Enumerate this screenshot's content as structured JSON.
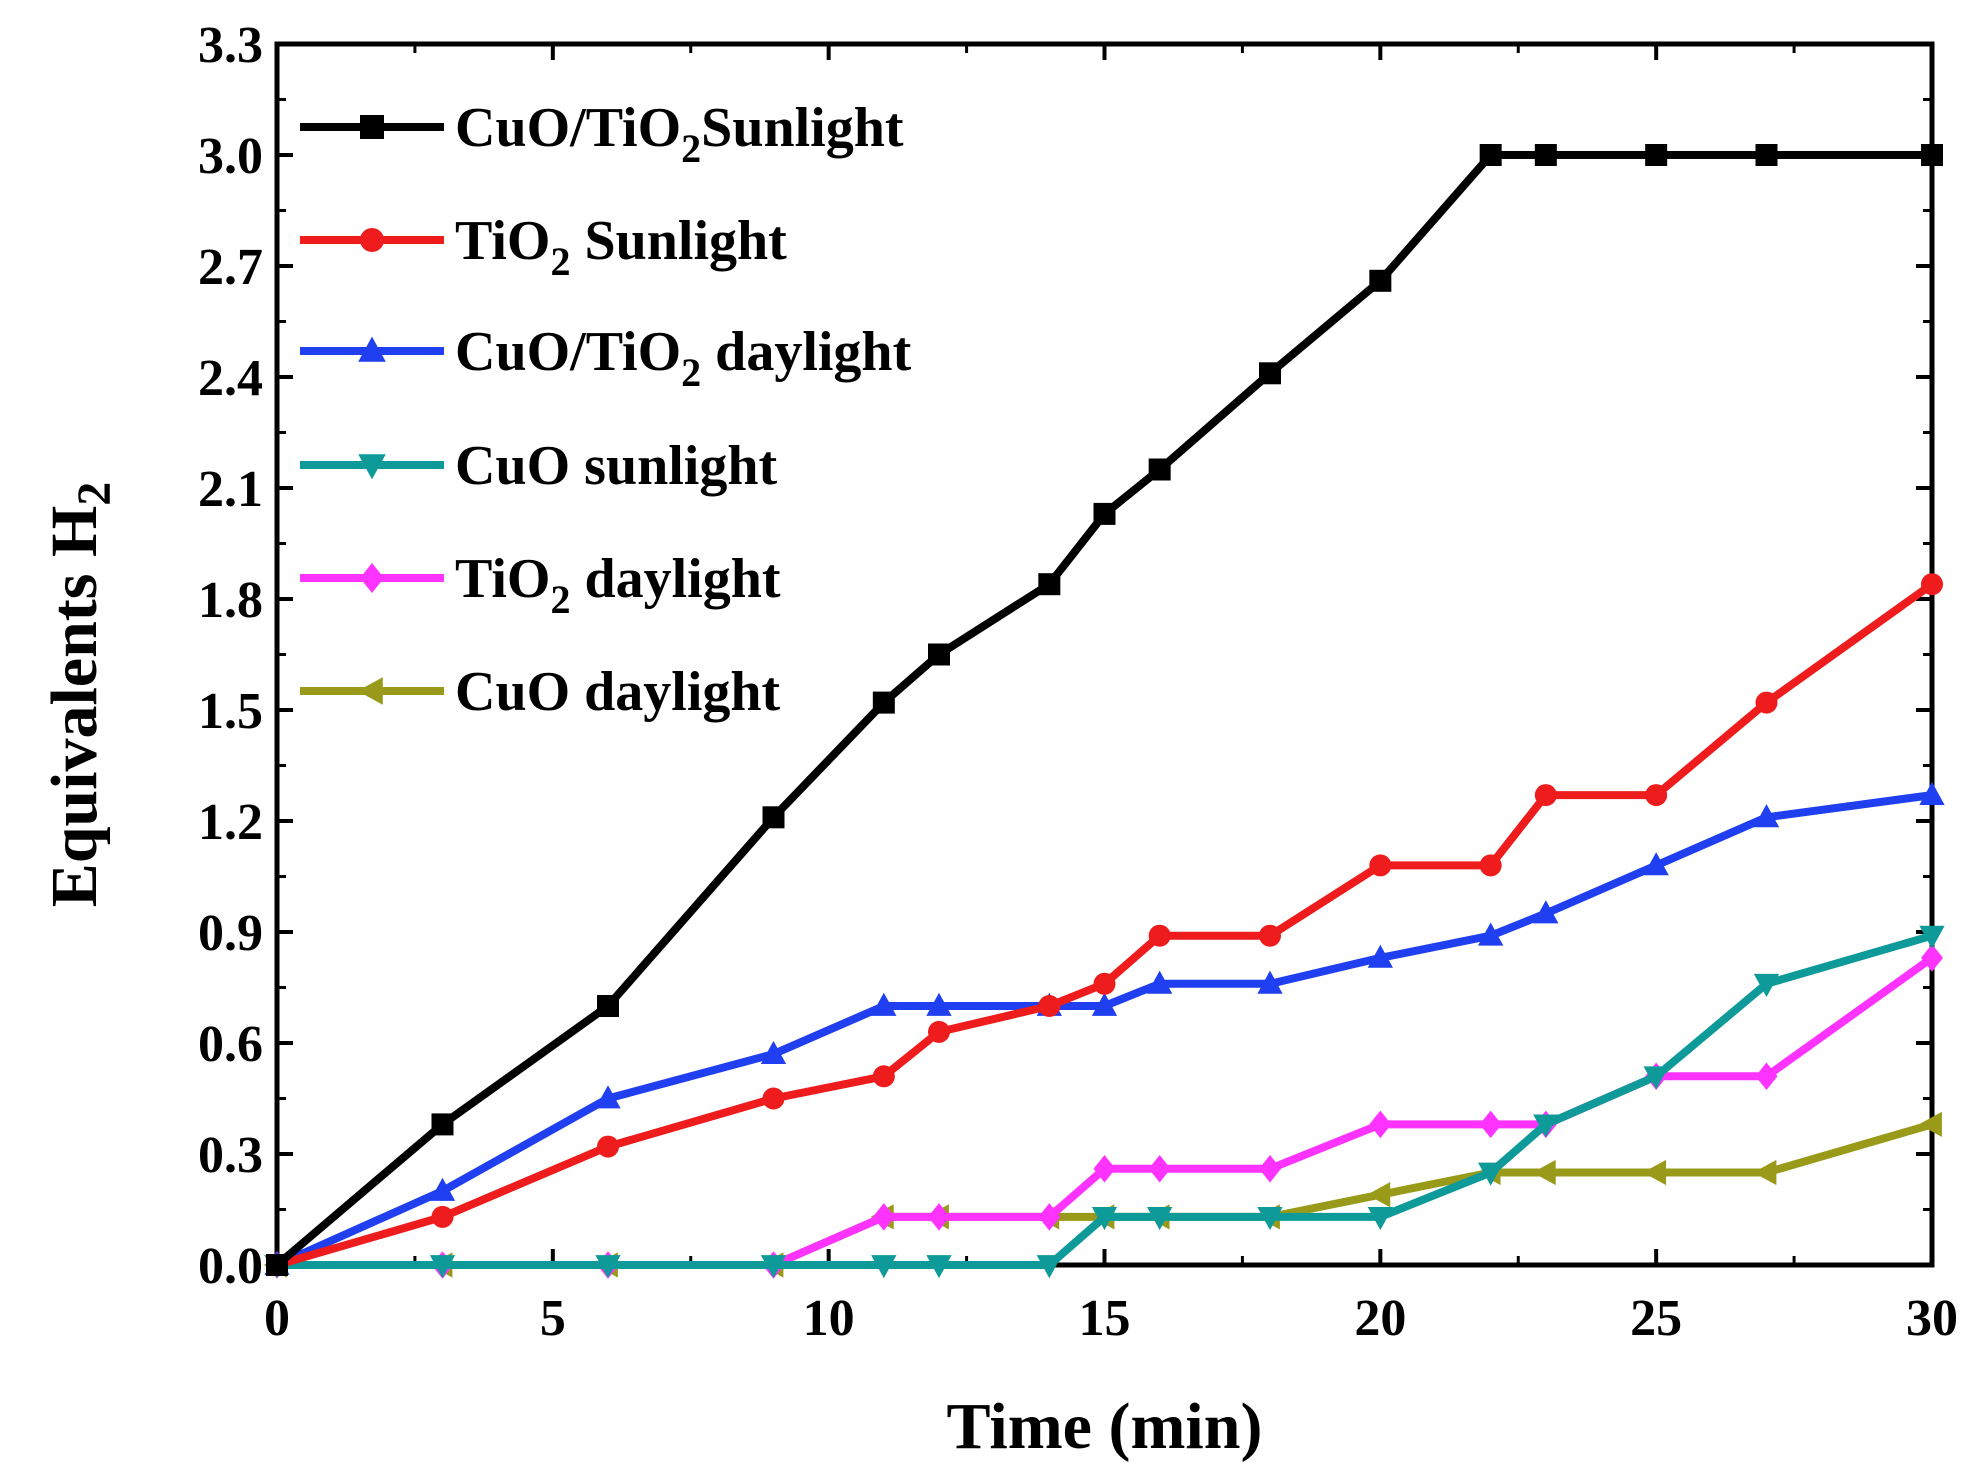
{
  "chart_data": {
    "type": "line",
    "title": "",
    "xlabel": "Time (min)",
    "ylabel": {
      "main": "Equivalents H",
      "sub": "2"
    },
    "xlim": [
      0,
      30
    ],
    "ylim": [
      0,
      3.3
    ],
    "x_ticks": [
      0,
      5,
      10,
      15,
      20,
      25,
      30
    ],
    "x_tick_labels": [
      "0",
      "5",
      "10",
      "15",
      "20",
      "25",
      "30"
    ],
    "y_ticks": [
      0,
      0.3,
      0.6,
      0.9,
      1.2,
      1.5,
      1.8,
      2.1,
      2.4,
      2.7,
      3.0,
      3.3
    ],
    "y_tick_labels": [
      "0.0",
      "0.3",
      "0.6",
      "0.9",
      "1.2",
      "1.5",
      "1.8",
      "2.1",
      "2.4",
      "2.7",
      "3.0",
      "3.3"
    ],
    "grid": false,
    "legend_position": "top-left",
    "series": [
      {
        "name": "CuO/TiO2Sunlight",
        "label": {
          "a": "CuO/TiO",
          "sub": "2",
          "b": "Sunlight"
        },
        "color": "#000000",
        "marker": "square",
        "x": [
          0,
          3,
          6,
          9,
          11,
          12,
          14,
          15,
          16,
          18,
          20,
          22,
          23,
          25,
          27,
          30
        ],
        "y": [
          0,
          0.38,
          0.7,
          1.21,
          1.52,
          1.65,
          1.84,
          2.03,
          2.15,
          2.41,
          2.66,
          3.0,
          3.0,
          3.0,
          3.0,
          3.0
        ]
      },
      {
        "name": "TiO2 Sunlight",
        "label": {
          "a": "TiO",
          "sub": "2",
          "b": " Sunlight"
        },
        "color": "#ee1c1c",
        "marker": "circle",
        "x": [
          0,
          3,
          6,
          9,
          11,
          12,
          14,
          15,
          16,
          18,
          20,
          22,
          23,
          25,
          27,
          30
        ],
        "y": [
          0,
          0.13,
          0.32,
          0.45,
          0.51,
          0.63,
          0.7,
          0.76,
          0.89,
          0.89,
          1.08,
          1.08,
          1.27,
          1.27,
          1.52,
          1.84
        ]
      },
      {
        "name": "CuO/TiO2 daylight",
        "label": {
          "a": "CuO/TiO",
          "sub": "2",
          "b": " daylight"
        },
        "color": "#1f3ff0",
        "marker": "triangle-up",
        "x": [
          0,
          3,
          6,
          9,
          11,
          12,
          14,
          15,
          16,
          18,
          20,
          22,
          23,
          25,
          27,
          30
        ],
        "y": [
          0,
          0.2,
          0.45,
          0.57,
          0.7,
          0.7,
          0.7,
          0.7,
          0.76,
          0.76,
          0.83,
          0.89,
          0.95,
          1.08,
          1.21,
          1.27
        ]
      },
      {
        "name": "CuO sunlight",
        "label": {
          "a": "CuO sunlight",
          "sub": "",
          "b": ""
        },
        "color": "#0f9a9a",
        "marker": "triangle-down",
        "x": [
          0,
          3,
          6,
          9,
          11,
          12,
          14,
          15,
          16,
          18,
          20,
          22,
          23,
          25,
          27,
          30
        ],
        "y": [
          0,
          0,
          0,
          0,
          0,
          0,
          0,
          0.13,
          0.13,
          0.13,
          0.13,
          0.25,
          0.38,
          0.51,
          0.76,
          0.89
        ]
      },
      {
        "name": "TiO2 daylight",
        "label": {
          "a": "TiO",
          "sub": "2",
          "b": " daylight"
        },
        "color": "#ff33ff",
        "marker": "diamond",
        "x": [
          0,
          3,
          6,
          9,
          11,
          12,
          14,
          15,
          16,
          18,
          20,
          22,
          23,
          25,
          27,
          30
        ],
        "y": [
          0,
          0,
          0,
          0,
          0.13,
          0.13,
          0.13,
          0.26,
          0.26,
          0.26,
          0.38,
          0.38,
          0.38,
          0.51,
          0.51,
          0.83
        ]
      },
      {
        "name": "CuO daylight",
        "label": {
          "a": "CuO daylight",
          "sub": "",
          "b": ""
        },
        "color": "#9a9a1a",
        "marker": "triangle-left",
        "x": [
          0,
          3,
          6,
          9,
          11,
          12,
          14,
          15,
          16,
          18,
          20,
          22,
          23,
          25,
          27,
          30
        ],
        "y": [
          0,
          0,
          0,
          0,
          0.13,
          0.13,
          0.13,
          0.13,
          0.13,
          0.13,
          0.19,
          0.25,
          0.25,
          0.25,
          0.25,
          0.38
        ]
      }
    ]
  }
}
